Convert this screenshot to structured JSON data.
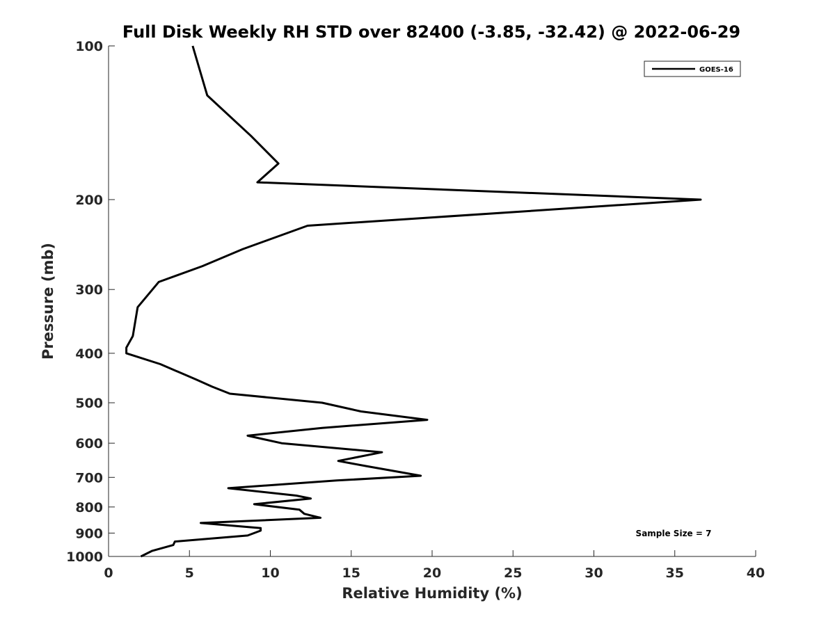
{
  "chart_data": {
    "type": "line",
    "title": "Full Disk Weekly RH STD over 82400 (-3.85, -32.42) @ 2022-06-29",
    "xlabel": "Relative Humidity (%)",
    "ylabel": "Pressure (mb)",
    "xlim": [
      0,
      40
    ],
    "ylim": [
      100,
      1000
    ],
    "yscale": "log",
    "y_reversed": true,
    "grid": false,
    "x_ticks": [
      0,
      5,
      10,
      15,
      20,
      25,
      30,
      35,
      40
    ],
    "x_tick_labels": [
      "0",
      "5",
      "10",
      "15",
      "20",
      "25",
      "30",
      "35",
      "40"
    ],
    "y_ticks": [
      100,
      200,
      300,
      400,
      500,
      600,
      700,
      800,
      900,
      1000
    ],
    "y_tick_labels": [
      "100",
      "200",
      "300",
      "400",
      "500",
      "600",
      "700",
      "800",
      "900",
      "1000"
    ],
    "legend_position": "top-right",
    "series": [
      {
        "name": "GOES-16",
        "color": "#000000",
        "x": [
          5.2,
          6.1,
          8.8,
          10.5,
          9.2,
          36.6,
          12.3,
          8.3,
          5.8,
          3.1,
          1.8,
          1.5,
          1.1,
          1.1,
          3.2,
          5.4,
          6.4,
          7.5,
          13.2,
          15.6,
          19.7,
          13.2,
          8.6,
          10.7,
          16.9,
          14.2,
          15.9,
          19.3,
          14.1,
          7.4,
          11.6,
          12.5,
          9.0,
          11.8,
          12.1,
          13.1,
          5.7,
          9.4,
          9.4,
          8.6,
          4.1,
          4.0,
          2.7,
          2.0
        ],
        "y": [
          100,
          125,
          150,
          170,
          185,
          200,
          225,
          250,
          270,
          290,
          325,
          370,
          390,
          400,
          420,
          450,
          465,
          480,
          500,
          520,
          540,
          560,
          580,
          600,
          625,
          650,
          665,
          695,
          710,
          735,
          760,
          770,
          790,
          810,
          825,
          840,
          860,
          880,
          890,
          910,
          935,
          950,
          975,
          1000
        ]
      }
    ],
    "annotations": [
      {
        "text": "Sample Size = 7",
        "position": "bottom-right"
      }
    ]
  }
}
